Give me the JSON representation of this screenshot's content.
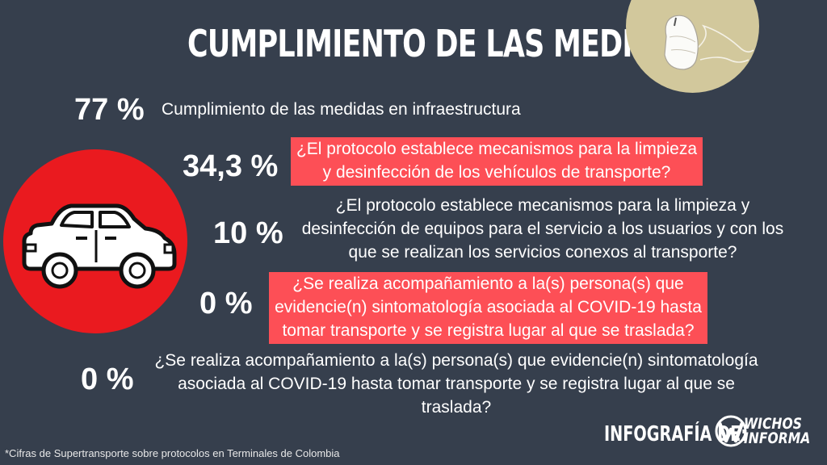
{
  "title": "CUMPLIMIENTO DE LAS MEDIDAS",
  "items": [
    {
      "percent": "77 %",
      "text": "Cumplimiento de las medidas en infraestructura"
    },
    {
      "percent": "34,3 %",
      "line1": "¿El protocolo establece mecanismos para la limpieza",
      "line2": "y desinfección de los vehículos de transporte?"
    },
    {
      "percent": "10 %",
      "line1": "¿El protocolo establece mecanismos para la limpieza y",
      "line2": "desinfección de equipos para el servicio a los usuarios y con los",
      "line3": "que se realizan los servicios conexos al transporte?"
    },
    {
      "percent": "0 %",
      "line1": "¿Se realiza acompañamiento a la(s) persona(s) que",
      "line2": "evidencie(n) sintomatología asociada al COVID-19 hasta",
      "line3": "tomar transporte y se registra lugar al que se traslada?"
    },
    {
      "percent": "0 %",
      "line1": "¿Se realiza acompañamiento a la(s) persona(s) que evidencie(n) sintomatología",
      "line2": "asociada al COVID-19 hasta tomar transporte y se registra lugar al que se",
      "line3": "traslada?"
    }
  ],
  "footer": {
    "credit_label": "INFOGRAFÍA DE:",
    "logo_line1": "WICHOS",
    "logo_line2": "INFORMA",
    "source": "*Cifras de Supertransporte sobre protocolos en Terminales de Colombia"
  },
  "icons": {
    "mask": "face-mask-icon",
    "car": "car-icon",
    "logo": "wichos-informa-logo"
  },
  "colors": {
    "background": "#363f4d",
    "highlight": "#fd4f56",
    "car_circle": "#ea1a1f",
    "mask_circle": "#d2c89c"
  }
}
